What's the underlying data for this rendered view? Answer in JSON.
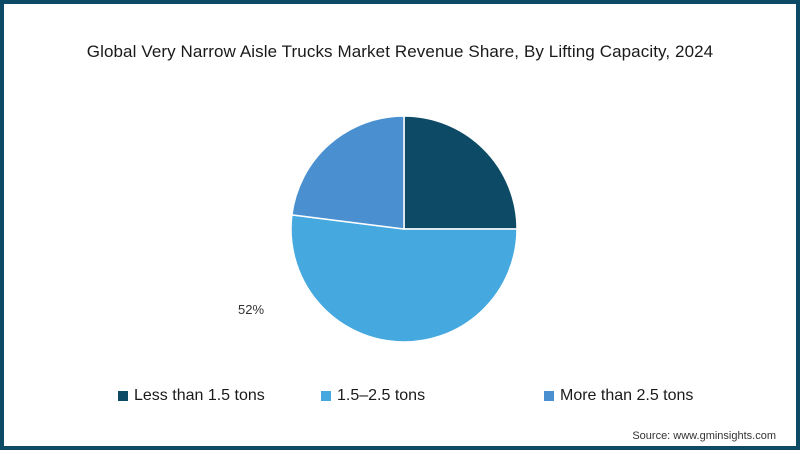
{
  "chart_data": {
    "type": "pie",
    "title": "Global Very Narrow Aisle Trucks Market Revenue Share, By Lifting Capacity, 2024",
    "categories": [
      "Less than 1.5 tons",
      "1.5–2.5 tons",
      "More than 2.5 tons"
    ],
    "values": [
      25,
      52,
      23
    ],
    "colors": [
      "#0d4a66",
      "#45a9e0",
      "#4a90d0"
    ],
    "data_labels": [
      {
        "category": "1.5–2.5 tons",
        "text": "52%"
      }
    ],
    "start_angle_deg": 0,
    "direction": "clockwise",
    "legend_position": "bottom",
    "source": "Source: www.gminsights.com"
  },
  "title": "Global Very Narrow Aisle Trucks Market Revenue Share, By Lifting Capacity, 2024",
  "label_52": "52%",
  "legend": [
    {
      "label": "Less than 1.5 tons",
      "color": "#0d4a66"
    },
    {
      "label": "1.5–2.5 tons",
      "color": "#45a9e0"
    },
    {
      "label": "More than 2.5 tons",
      "color": "#4a90d0"
    }
  ],
  "source": "Source: www.gminsights.com",
  "frame_color": "#0d4a66"
}
